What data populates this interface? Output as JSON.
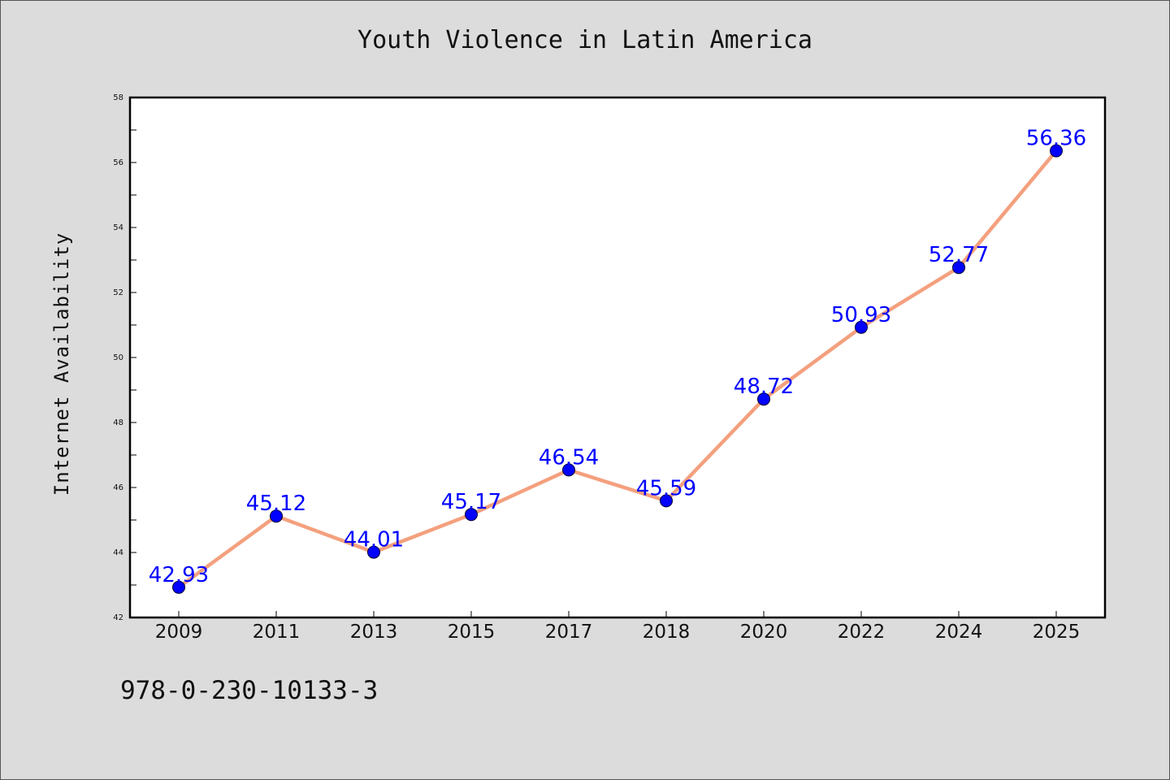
{
  "chart_data": {
    "type": "line",
    "title": "Youth Violence in Latin America",
    "xlabel": "",
    "ylabel": "Internet Availability",
    "categories": [
      "2009",
      "2011",
      "2013",
      "2015",
      "2017",
      "2018",
      "2020",
      "2022",
      "2024",
      "2025"
    ],
    "series": [
      {
        "values": [
          42.93,
          45.12,
          44.01,
          45.17,
          46.54,
          45.59,
          48.72,
          50.93,
          52.77,
          56.36
        ],
        "data_labels": [
          "42.93",
          "45.12",
          "44.01",
          "45.17",
          "46.54",
          "45.59",
          "48.72",
          "50.93",
          "52.77",
          "56.36"
        ]
      }
    ],
    "ylim": [
      42,
      58
    ],
    "yticks": [
      "42",
      "44",
      "46",
      "48",
      "50",
      "52",
      "54",
      "56",
      "58"
    ],
    "grid": false,
    "colors": {
      "line": "#f4a07e",
      "marker": "#0000ff",
      "data_label": "#0000ff"
    }
  },
  "footer": {
    "text": "978-0-230-10133-3"
  }
}
